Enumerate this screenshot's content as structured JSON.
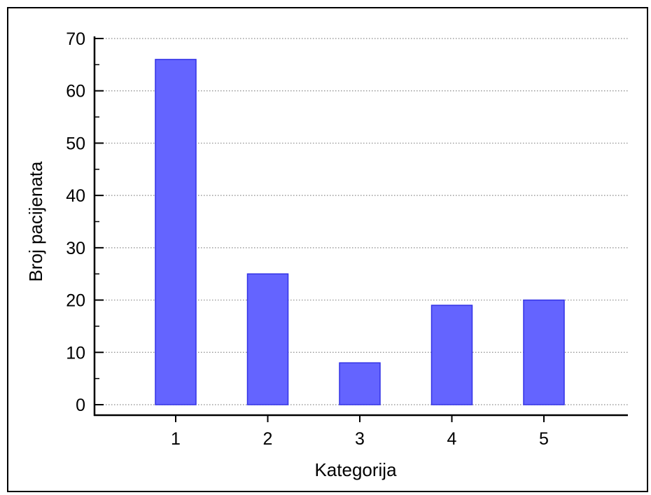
{
  "chart_data": {
    "type": "bar",
    "categories": [
      "1",
      "2",
      "3",
      "4",
      "5"
    ],
    "values": [
      66,
      25,
      8,
      19,
      20
    ],
    "title": "",
    "xlabel": "Kategorija",
    "ylabel": "Broj pacijenata",
    "ylim": [
      0,
      70
    ],
    "yticks": [
      "0",
      "10",
      "20",
      "30",
      "40",
      "50",
      "60",
      "70"
    ],
    "grid": "horizontal-dotted",
    "bar_color": "#6464ff",
    "bar_edge_color": "#3232e6"
  }
}
